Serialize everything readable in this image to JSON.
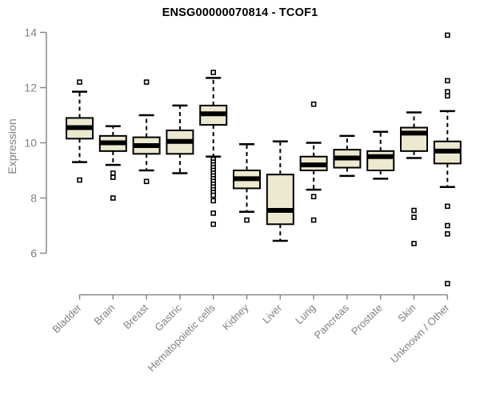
{
  "chart_data": {
    "type": "boxplot",
    "title": "ENSG00000070814 - TCOF1",
    "xlabel": "",
    "ylabel": "Expression",
    "ylim": [
      6,
      14
    ],
    "yticks": [
      6,
      8,
      10,
      12,
      14
    ],
    "grid": false,
    "legend": null,
    "categories": [
      "Bladder",
      "Brain",
      "Breast",
      "Gastric",
      "Hematopoietic cells",
      "Kidney",
      "Liver",
      "Lung",
      "Pancreas",
      "Prostate",
      "Skin",
      "Unknown / Other"
    ],
    "series": [
      {
        "category": "Bladder",
        "whisker_low": 9.3,
        "q1": 10.15,
        "median": 10.55,
        "q3": 10.9,
        "whisker_high": 11.85,
        "outliers": [
          12.2,
          8.65
        ]
      },
      {
        "category": "Brain",
        "whisker_low": 9.2,
        "q1": 9.7,
        "median": 10.0,
        "q3": 10.25,
        "whisker_high": 10.6,
        "outliers": [
          8.9,
          8.75,
          8.0
        ]
      },
      {
        "category": "Breast",
        "whisker_low": 9.0,
        "q1": 9.6,
        "median": 9.9,
        "q3": 10.2,
        "whisker_high": 11.0,
        "outliers": [
          12.2,
          8.6
        ]
      },
      {
        "category": "Gastric",
        "whisker_low": 8.9,
        "q1": 9.6,
        "median": 10.05,
        "q3": 10.45,
        "whisker_high": 11.35,
        "outliers": []
      },
      {
        "category": "Hematopoietic cells",
        "whisker_low": 9.5,
        "q1": 10.65,
        "median": 11.05,
        "q3": 11.35,
        "whisker_high": 12.35,
        "outliers": [
          12.55,
          9.4,
          9.3,
          9.2,
          9.1,
          9.0,
          8.9,
          8.8,
          8.7,
          8.6,
          8.5,
          8.4,
          8.3,
          8.2,
          8.1,
          7.9,
          7.45,
          7.05
        ]
      },
      {
        "category": "Kidney",
        "whisker_low": 7.5,
        "q1": 8.35,
        "median": 8.7,
        "q3": 9.0,
        "whisker_high": 9.95,
        "outliers": [
          7.2
        ]
      },
      {
        "category": "Liver",
        "whisker_low": 6.45,
        "q1": 7.05,
        "median": 7.55,
        "q3": 8.85,
        "whisker_high": 10.05,
        "outliers": []
      },
      {
        "category": "Lung",
        "whisker_low": 8.3,
        "q1": 9.0,
        "median": 9.2,
        "q3": 9.5,
        "whisker_high": 10.0,
        "outliers": [
          11.4,
          8.05,
          7.2
        ]
      },
      {
        "category": "Pancreas",
        "whisker_low": 8.8,
        "q1": 9.1,
        "median": 9.45,
        "q3": 9.75,
        "whisker_high": 10.25,
        "outliers": []
      },
      {
        "category": "Prostate",
        "whisker_low": 8.7,
        "q1": 9.0,
        "median": 9.5,
        "q3": 9.7,
        "whisker_high": 10.4,
        "outliers": []
      },
      {
        "category": "Skin",
        "whisker_low": 9.45,
        "q1": 9.7,
        "median": 10.35,
        "q3": 10.55,
        "whisker_high": 11.1,
        "outliers": [
          7.55,
          7.3,
          6.35
        ]
      },
      {
        "category": "Unknown / Other",
        "whisker_low": 8.4,
        "q1": 9.25,
        "median": 9.7,
        "q3": 10.05,
        "whisker_high": 11.15,
        "outliers": [
          13.9,
          12.25,
          11.85,
          11.7,
          7.7,
          7.0,
          6.7,
          4.9
        ]
      }
    ],
    "colors": {
      "box_fill": "#EDE8D0",
      "box_border": "#000000",
      "median": "#000000",
      "whisker": "#000000",
      "outlier_stroke": "#000000",
      "outlier_fill": "#ffffff",
      "axis": "#888888",
      "tick_label": "#808080",
      "title": "#000000"
    }
  }
}
